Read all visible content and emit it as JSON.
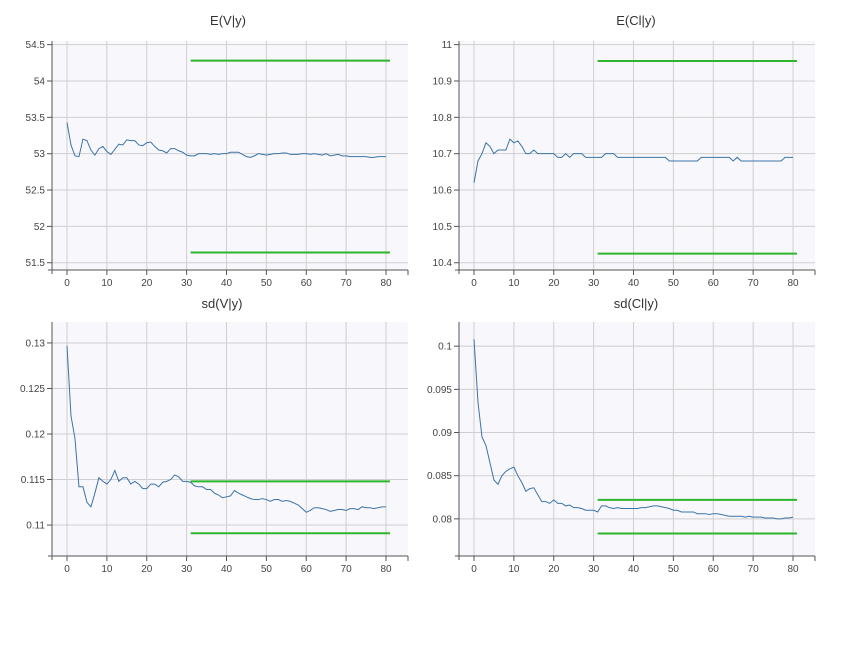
{
  "chart_data": [
    {
      "type": "line",
      "title": "E(V|y)",
      "xlim": [
        0,
        80
      ],
      "ylim": [
        51.4,
        54.55
      ],
      "yticks": [
        "51.5",
        "52",
        "52.5",
        "53",
        "53.5",
        "54",
        "54.5"
      ],
      "xticks": [
        "0",
        "10",
        "20",
        "30",
        "40",
        "50",
        "60",
        "70",
        "80"
      ],
      "grid": true,
      "series": [
        {
          "color": "#3b73a8",
          "x": [
            0,
            1,
            2,
            3,
            4,
            5,
            6,
            7,
            8,
            9,
            10,
            11,
            12,
            13,
            14,
            15,
            16,
            17,
            18,
            19,
            20,
            21,
            22,
            23,
            24,
            25,
            26,
            27,
            28,
            29,
            30,
            31,
            32,
            33,
            34,
            35,
            36,
            37,
            38,
            39,
            40,
            41,
            42,
            43,
            44,
            45,
            46,
            47,
            48,
            49,
            50,
            51,
            52,
            53,
            54,
            55,
            56,
            57,
            58,
            59,
            60,
            61,
            62,
            63,
            64,
            65,
            66,
            67,
            68,
            69,
            70,
            71,
            72,
            73,
            74,
            75,
            76,
            77,
            78,
            79,
            80
          ],
          "y": [
            53.43,
            53.12,
            52.97,
            52.96,
            53.2,
            53.18,
            53.05,
            52.98,
            53.07,
            53.1,
            53.03,
            52.99,
            53.06,
            53.13,
            53.12,
            53.19,
            53.18,
            53.18,
            53.12,
            53.11,
            53.15,
            53.16,
            53.1,
            53.05,
            53.04,
            53.01,
            53.07,
            53.07,
            53.04,
            53.02,
            52.98,
            52.97,
            52.97,
            53.0,
            53.0,
            53.0,
            52.99,
            53.0,
            52.99,
            53.0,
            53.0,
            53.02,
            53.02,
            53.02,
            52.99,
            52.96,
            52.95,
            52.97,
            53.0,
            52.99,
            52.98,
            52.99,
            53.0,
            53.0,
            53.01,
            53.01,
            52.99,
            52.99,
            52.99,
            53.0,
            53.0,
            52.99,
            53.0,
            52.99,
            52.98,
            53.0,
            52.97,
            52.98,
            52.99,
            52.97,
            52.97,
            52.96,
            52.96,
            52.96,
            52.96,
            52.96,
            52.95,
            52.95,
            52.96,
            52.96,
            52.96
          ]
        }
      ],
      "bounds": [
        {
          "color": "#2db52d",
          "x": [
            31,
            81
          ],
          "y": 54.28
        },
        {
          "color": "#2db52d",
          "x": [
            31,
            81
          ],
          "y": 51.64
        }
      ]
    },
    {
      "type": "line",
      "title": "E(Cl|y)",
      "xlim": [
        0,
        80
      ],
      "ylim": [
        10.38,
        11.01
      ],
      "yticks": [
        "10.4",
        "10.5",
        "10.6",
        "10.7",
        "10.8",
        "10.9",
        "11"
      ],
      "xticks": [
        "0",
        "10",
        "20",
        "30",
        "40",
        "50",
        "60",
        "70",
        "80"
      ],
      "grid": true,
      "series": [
        {
          "color": "#3b73a8",
          "x": [
            0,
            1,
            2,
            3,
            4,
            5,
            6,
            7,
            8,
            9,
            10,
            11,
            12,
            13,
            14,
            15,
            16,
            17,
            18,
            19,
            20,
            21,
            22,
            23,
            24,
            25,
            26,
            27,
            28,
            29,
            30,
            31,
            32,
            33,
            34,
            35,
            36,
            37,
            38,
            39,
            40,
            41,
            42,
            43,
            44,
            45,
            46,
            47,
            48,
            49,
            50,
            51,
            52,
            53,
            54,
            55,
            56,
            57,
            58,
            59,
            60,
            61,
            62,
            63,
            64,
            65,
            66,
            67,
            68,
            69,
            70,
            71,
            72,
            73,
            74,
            75,
            76,
            77,
            78,
            79,
            80
          ],
          "y": [
            10.62,
            10.68,
            10.7,
            10.73,
            10.72,
            10.7,
            10.71,
            10.71,
            10.71,
            10.74,
            10.73,
            10.735,
            10.72,
            10.7,
            10.7,
            10.71,
            10.7,
            10.7,
            10.7,
            10.7,
            10.7,
            10.69,
            10.69,
            10.7,
            10.69,
            10.7,
            10.7,
            10.7,
            10.69,
            10.69,
            10.69,
            10.69,
            10.69,
            10.7,
            10.7,
            10.7,
            10.69,
            10.69,
            10.69,
            10.69,
            10.69,
            10.69,
            10.69,
            10.69,
            10.69,
            10.69,
            10.69,
            10.69,
            10.69,
            10.68,
            10.68,
            10.68,
            10.68,
            10.68,
            10.68,
            10.68,
            10.68,
            10.69,
            10.69,
            10.69,
            10.69,
            10.69,
            10.69,
            10.69,
            10.69,
            10.68,
            10.69,
            10.68,
            10.68,
            10.68,
            10.68,
            10.68,
            10.68,
            10.68,
            10.68,
            10.68,
            10.68,
            10.68,
            10.69,
            10.69,
            10.69
          ]
        }
      ],
      "bounds": [
        {
          "color": "#2db52d",
          "x": [
            31,
            81
          ],
          "y": 10.955
        },
        {
          "color": "#2db52d",
          "x": [
            31,
            81
          ],
          "y": 10.425
        }
      ]
    },
    {
      "type": "line",
      "title": "sd(V|y)",
      "xlim": [
        0,
        80
      ],
      "ylim": [
        0.1066,
        0.1323
      ],
      "yticks": [
        "0.11",
        "0.115",
        "0.12",
        "0.125",
        "0.13"
      ],
      "xticks": [
        "0",
        "10",
        "20",
        "30",
        "40",
        "50",
        "60",
        "70",
        "80"
      ],
      "grid": true,
      "series": [
        {
          "color": "#3b73a8",
          "x": [
            0,
            1,
            2,
            3,
            4,
            5,
            6,
            7,
            8,
            9,
            10,
            11,
            12,
            13,
            14,
            15,
            16,
            17,
            18,
            19,
            20,
            21,
            22,
            23,
            24,
            25,
            26,
            27,
            28,
            29,
            30,
            31,
            32,
            33,
            34,
            35,
            36,
            37,
            38,
            39,
            40,
            41,
            42,
            43,
            44,
            45,
            46,
            47,
            48,
            49,
            50,
            51,
            52,
            53,
            54,
            55,
            56,
            57,
            58,
            59,
            60,
            61,
            62,
            63,
            64,
            65,
            66,
            67,
            68,
            69,
            70,
            71,
            72,
            73,
            74,
            75,
            76,
            77,
            78,
            79,
            80
          ],
          "y": [
            0.1297,
            0.122,
            0.1195,
            0.1142,
            0.1142,
            0.1125,
            0.112,
            0.1135,
            0.1152,
            0.1148,
            0.1145,
            0.115,
            0.116,
            0.1148,
            0.1152,
            0.1152,
            0.1145,
            0.1148,
            0.1145,
            0.114,
            0.114,
            0.1145,
            0.1145,
            0.1142,
            0.1147,
            0.1148,
            0.115,
            0.1155,
            0.1153,
            0.1148,
            0.1148,
            0.1147,
            0.1143,
            0.1142,
            0.1142,
            0.1139,
            0.1139,
            0.1135,
            0.1133,
            0.113,
            0.1131,
            0.1132,
            0.1138,
            0.1135,
            0.1133,
            0.1131,
            0.1129,
            0.1128,
            0.1128,
            0.1129,
            0.1128,
            0.1126,
            0.1128,
            0.1128,
            0.1126,
            0.1127,
            0.1126,
            0.1124,
            0.1122,
            0.1118,
            0.1114,
            0.1116,
            0.1119,
            0.1119,
            0.1118,
            0.1117,
            0.1115,
            0.1116,
            0.1117,
            0.1117,
            0.1116,
            0.1118,
            0.1118,
            0.1117,
            0.112,
            0.1119,
            0.1119,
            0.1118,
            0.1119,
            0.112,
            0.112
          ]
        }
      ],
      "bounds": [
        {
          "color": "#2db52d",
          "x": [
            31,
            81
          ],
          "y": 0.1148
        },
        {
          "color": "#2db52d",
          "x": [
            31,
            81
          ],
          "y": 0.1091
        }
      ]
    },
    {
      "type": "line",
      "title": "sd(Cl|y)",
      "xlim": [
        0,
        80
      ],
      "ylim": [
        0.0757,
        0.1028
      ],
      "yticks": [
        "0.08",
        "0.085",
        "0.09",
        "0.095",
        "0.1"
      ],
      "xticks": [
        "0",
        "10",
        "20",
        "30",
        "40",
        "50",
        "60",
        "70",
        "80"
      ],
      "grid": true,
      "series": [
        {
          "color": "#3b73a8",
          "x": [
            0,
            1,
            2,
            3,
            4,
            5,
            6,
            7,
            8,
            9,
            10,
            11,
            12,
            13,
            14,
            15,
            16,
            17,
            18,
            19,
            20,
            21,
            22,
            23,
            24,
            25,
            26,
            27,
            28,
            29,
            30,
            31,
            32,
            33,
            34,
            35,
            36,
            37,
            38,
            39,
            40,
            41,
            42,
            43,
            44,
            45,
            46,
            47,
            48,
            49,
            50,
            51,
            52,
            53,
            54,
            55,
            56,
            57,
            58,
            59,
            60,
            61,
            62,
            63,
            64,
            65,
            66,
            67,
            68,
            69,
            70,
            71,
            72,
            73,
            74,
            75,
            76,
            77,
            78,
            79,
            80
          ],
          "y": [
            0.1008,
            0.0935,
            0.0895,
            0.0885,
            0.0865,
            0.0845,
            0.084,
            0.085,
            0.0855,
            0.0858,
            0.086,
            0.085,
            0.0842,
            0.0832,
            0.0835,
            0.0836,
            0.0828,
            0.082,
            0.082,
            0.0818,
            0.0822,
            0.0818,
            0.0818,
            0.0815,
            0.0816,
            0.0813,
            0.0813,
            0.0812,
            0.081,
            0.081,
            0.081,
            0.0808,
            0.0815,
            0.0815,
            0.0813,
            0.0812,
            0.0813,
            0.0812,
            0.0812,
            0.0812,
            0.0812,
            0.0812,
            0.0813,
            0.0813,
            0.0814,
            0.0815,
            0.0815,
            0.0814,
            0.0813,
            0.0812,
            0.081,
            0.081,
            0.0808,
            0.0808,
            0.0808,
            0.0808,
            0.0806,
            0.0806,
            0.0806,
            0.0805,
            0.0806,
            0.0806,
            0.0805,
            0.0804,
            0.0803,
            0.0803,
            0.0803,
            0.0803,
            0.0802,
            0.0803,
            0.0802,
            0.0802,
            0.0802,
            0.0801,
            0.0801,
            0.0801,
            0.08,
            0.08,
            0.0801,
            0.0801,
            0.0802
          ]
        }
      ],
      "bounds": [
        {
          "color": "#2db52d",
          "x": [
            31,
            81
          ],
          "y": 0.0822
        },
        {
          "color": "#2db52d",
          "x": [
            31,
            81
          ],
          "y": 0.0783
        }
      ]
    }
  ]
}
